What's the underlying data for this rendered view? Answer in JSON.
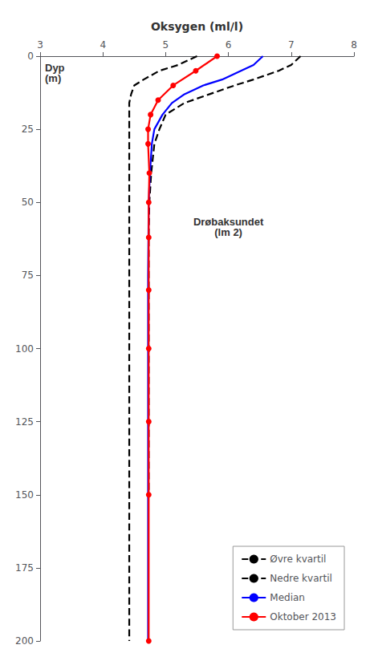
{
  "chart_data": {
    "type": "line",
    "title": "Oksygen (ml/l)",
    "ylabel": "Dyp\n(m)",
    "annotation": "Drøbaksundet\n(lm 2)",
    "xlim": [
      3,
      8
    ],
    "ylim": [
      200,
      0
    ],
    "xticks": [
      3,
      4,
      5,
      6,
      7,
      8
    ],
    "yticks": [
      0,
      25,
      50,
      75,
      100,
      125,
      150,
      175,
      200
    ],
    "grid": false,
    "legend": "lower right",
    "series": [
      {
        "name": "Øvre kvartil",
        "color": "black",
        "line_style": "dashed",
        "x": [
          7.15,
          7.0,
          6.8,
          6.4,
          6.1,
          5.7,
          5.3,
          5.0,
          4.9,
          4.82,
          4.77,
          4.74,
          4.73,
          4.73,
          4.73,
          4.73,
          4.73
        ],
        "y": [
          0,
          3,
          5,
          8,
          10,
          13,
          16,
          20,
          25,
          30,
          40,
          50,
          60,
          75,
          100,
          125,
          150
        ]
      },
      {
        "name": "Nedre kvartil",
        "color": "black",
        "line_style": "dashed",
        "x": [
          5.5,
          5.2,
          4.9,
          4.65,
          4.5,
          4.45,
          4.42,
          4.42,
          4.42,
          4.42,
          4.42,
          4.42,
          4.42,
          4.42,
          4.42,
          4.42,
          4.42,
          4.42
        ],
        "y": [
          0,
          3,
          5,
          8,
          10,
          13,
          16,
          20,
          25,
          30,
          40,
          50,
          75,
          100,
          125,
          150,
          175,
          200
        ]
      },
      {
        "name": "Median",
        "color": "blue",
        "line_style": "solid",
        "x": [
          6.55,
          6.4,
          6.2,
          5.9,
          5.6,
          5.3,
          5.1,
          4.95,
          4.82,
          4.78,
          4.75,
          4.73,
          4.72,
          4.72,
          4.72,
          4.72,
          4.72,
          4.72
        ],
        "y": [
          0,
          3,
          5,
          8,
          10,
          13,
          16,
          20,
          25,
          30,
          40,
          50,
          75,
          100,
          125,
          150,
          175,
          200
        ]
      },
      {
        "name": "Oktober 2013",
        "color": "red",
        "line_style": "solid",
        "marker": "circle",
        "x": [
          5.82,
          5.48,
          5.12,
          4.88,
          4.76,
          4.72,
          4.72,
          4.74,
          4.73,
          4.73,
          4.73,
          4.73,
          4.73,
          4.73,
          4.73
        ],
        "y": [
          0,
          5,
          10,
          15,
          20,
          25,
          30,
          40,
          50,
          62,
          80,
          100,
          125,
          150,
          200
        ]
      }
    ]
  }
}
